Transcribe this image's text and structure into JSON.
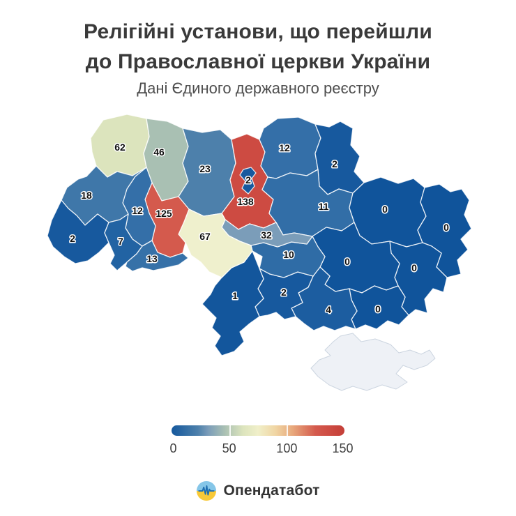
{
  "header": {
    "title_line1": "Релігійні установи, що перейшли",
    "title_line2": "до Православної церкви України",
    "subtitle": "Дані Єдиного державного реєстру"
  },
  "chart_data": {
    "type": "heatmap",
    "subtype": "choropleth map of Ukraine oblasts",
    "title": "Релігійні установи, що перейшли до Православної церкви України",
    "subtitle": "Дані Єдиного державного реєстру",
    "colorbar": {
      "min": 0,
      "max": 150,
      "tick_values": [
        0,
        50,
        100,
        150
      ],
      "gradient_stops": [
        {
          "value": 0,
          "color": "#15589d"
        },
        {
          "value": 23,
          "color": "#4d80ab"
        },
        {
          "value": 32,
          "color": "#7b9db9"
        },
        {
          "value": 46,
          "color": "#a9c0b3"
        },
        {
          "value": 62,
          "color": "#dce4bd"
        },
        {
          "value": 75,
          "color": "#f0efc9"
        },
        {
          "value": 90,
          "color": "#f0d6a4"
        },
        {
          "value": 105,
          "color": "#e8a87c"
        },
        {
          "value": 125,
          "color": "#d45a4d"
        },
        {
          "value": 138,
          "color": "#cd4b42"
        },
        {
          "value": 150,
          "color": "#c43f38"
        }
      ]
    },
    "regions": [
      {
        "id": "volyn",
        "value": 62,
        "color": "#dce4bd"
      },
      {
        "id": "rivne",
        "value": 46,
        "color": "#a9c0b3"
      },
      {
        "id": "zhytomyr",
        "value": 23,
        "color": "#4d80ab"
      },
      {
        "id": "kyiv-oblast",
        "value": 138,
        "color": "#cd4b42"
      },
      {
        "id": "kyiv-city",
        "value": 2,
        "color": "#17599e"
      },
      {
        "id": "chernihiv",
        "value": 12,
        "color": "#346fa8"
      },
      {
        "id": "sumy",
        "value": 2,
        "color": "#17599e"
      },
      {
        "id": "poltava",
        "value": 11,
        "color": "#326ea7"
      },
      {
        "id": "kharkiv",
        "value": 0,
        "color": "#10549b"
      },
      {
        "id": "luhansk",
        "value": 0,
        "color": "#10549b"
      },
      {
        "id": "donetsk",
        "value": 0,
        "color": "#10549b"
      },
      {
        "id": "dnipropetrovsk",
        "value": 0,
        "color": "#10549b"
      },
      {
        "id": "zaporizhzhia",
        "value": 0,
        "color": "#10549b"
      },
      {
        "id": "kherson",
        "value": 4,
        "color": "#1c5da0"
      },
      {
        "id": "mykolaiv",
        "value": 2,
        "color": "#17599e"
      },
      {
        "id": "odesa",
        "value": 1,
        "color": "#13569c"
      },
      {
        "id": "kirovohrad",
        "value": 10,
        "color": "#2f6ca6"
      },
      {
        "id": "cherkasy",
        "value": 32,
        "color": "#7b9db9"
      },
      {
        "id": "vinnytsia",
        "value": 67,
        "color": "#eff0cd"
      },
      {
        "id": "khmelnytskyi",
        "value": 125,
        "color": "#d45a4d"
      },
      {
        "id": "ternopil",
        "value": 12,
        "color": "#346fa8"
      },
      {
        "id": "lviv",
        "value": 18,
        "color": "#3f77a9"
      },
      {
        "id": "zakarpattia",
        "value": 2,
        "color": "#17599e"
      },
      {
        "id": "ivano-frankivsk",
        "value": 7,
        "color": "#2263a3"
      },
      {
        "id": "chernivtsi",
        "value": 13,
        "color": "#3671a8"
      }
    ],
    "no_data_regions": [
      {
        "id": "crimea",
        "color": "#eef1f6"
      }
    ]
  },
  "legend": {
    "ticks": [
      "0",
      "50",
      "100",
      "150"
    ]
  },
  "footer": {
    "brand": "Опендатабот",
    "logo_colors": {
      "top": "#85c6e8",
      "bottom": "#f8c938",
      "pulse": "#1e6eb0"
    }
  }
}
